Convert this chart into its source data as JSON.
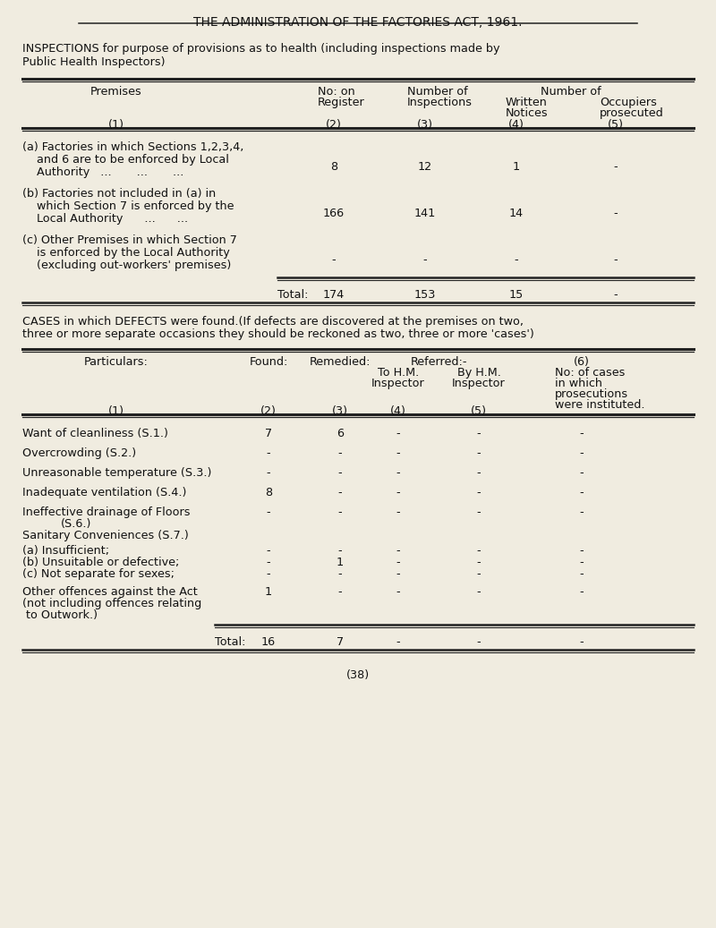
{
  "title": "THE ADMINISTRATION OF THE FACTORIES ACT, 1961.",
  "bg_color": "#f0ece0",
  "text_color": "#111111",
  "font_family": "Courier New",
  "page_number": "(38)",
  "section1_intro_line1": "INSPECTIONS for purpose of provisions as to health (including inspections made by",
  "section1_intro_line2": "Public Health Inspectors)",
  "section2_intro_line1": "CASES in which DEFECTS were found.(If defects are discovered at the premises on two,",
  "section2_intro_line2": "three or more separate occasions they should be reckoned as two, three or more 'cases')"
}
